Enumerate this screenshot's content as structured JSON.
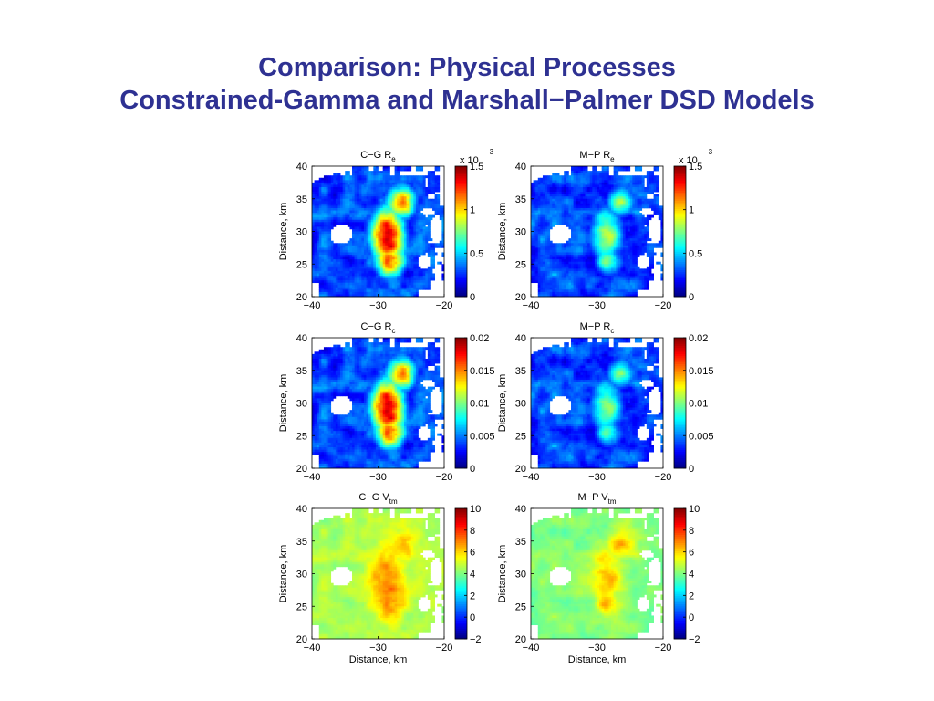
{
  "slide": {
    "title_line1": "Comparison: Physical Processes",
    "title_line2": "Constrained-Gamma and Marshall−Palmer DSD Models"
  },
  "colormap": "jet",
  "chart_data": [
    {
      "type": "heatmap",
      "title": "C−G R",
      "title_sub": "e",
      "field": "Re",
      "model": "C-G",
      "xlabel": "",
      "ylabel": "Distance, km",
      "xlim": [
        -40,
        -20
      ],
      "ylim": [
        20,
        40
      ],
      "xticks": [
        "−40",
        "−30",
        "−20"
      ],
      "yticks": [
        "20",
        "25",
        "30",
        "35",
        "40"
      ],
      "clim": [
        0,
        1.5
      ],
      "cbar_ticks": [
        "0",
        "0.5",
        "1",
        "1.5"
      ],
      "cbar_multiplier": "x 10",
      "cbar_exponent": "−3",
      "peak_value": 1.5
    },
    {
      "type": "heatmap",
      "title": "M−P R",
      "title_sub": "e",
      "field": "Re",
      "model": "M-P",
      "xlabel": "",
      "ylabel": "Distance, km",
      "xlim": [
        -40,
        -20
      ],
      "ylim": [
        20,
        40
      ],
      "xticks": [
        "−40",
        "−30",
        "−20"
      ],
      "yticks": [
        "20",
        "25",
        "30",
        "35",
        "40"
      ],
      "clim": [
        0,
        1.5
      ],
      "cbar_ticks": [
        "0",
        "0.5",
        "1",
        "1.5"
      ],
      "cbar_multiplier": "x 10",
      "cbar_exponent": "−3",
      "peak_value": 0.9
    },
    {
      "type": "heatmap",
      "title": "C−G R",
      "title_sub": "c",
      "field": "Rc",
      "model": "C-G",
      "xlabel": "",
      "ylabel": "Distance, km",
      "xlim": [
        -40,
        -20
      ],
      "ylim": [
        20,
        40
      ],
      "xticks": [
        "−40",
        "−30",
        "−20"
      ],
      "yticks": [
        "20",
        "25",
        "30",
        "35",
        "40"
      ],
      "clim": [
        0,
        0.02
      ],
      "cbar_ticks": [
        "0",
        "0.005",
        "0.01",
        "0.015",
        "0.02"
      ],
      "cbar_multiplier": "",
      "cbar_exponent": "",
      "peak_value": 0.02
    },
    {
      "type": "heatmap",
      "title": "M−P R",
      "title_sub": "c",
      "field": "Rc",
      "model": "M-P",
      "xlabel": "",
      "ylabel": "Distance, km",
      "xlim": [
        -40,
        -20
      ],
      "ylim": [
        20,
        40
      ],
      "xticks": [
        "−40",
        "−30",
        "−20"
      ],
      "yticks": [
        "20",
        "25",
        "30",
        "35",
        "40"
      ],
      "clim": [
        0,
        0.02
      ],
      "cbar_ticks": [
        "0",
        "0.005",
        "0.01",
        "0.015",
        "0.02"
      ],
      "cbar_multiplier": "",
      "cbar_exponent": "",
      "peak_value": 0.011
    },
    {
      "type": "heatmap",
      "title": "C−G V",
      "title_sub": "tm",
      "field": "Vtm",
      "model": "C-G",
      "xlabel": "Distance, km",
      "ylabel": "Distance, km",
      "xlim": [
        -40,
        -20
      ],
      "ylim": [
        20,
        40
      ],
      "xticks": [
        "−40",
        "−30",
        "−20"
      ],
      "yticks": [
        "20",
        "25",
        "30",
        "35",
        "40"
      ],
      "clim": [
        -2,
        10
      ],
      "cbar_ticks": [
        "−2",
        "0",
        "2",
        "4",
        "6",
        "8",
        "10"
      ],
      "cbar_multiplier": "",
      "cbar_exponent": "",
      "background_value": 4.5,
      "peak_value": 7.2
    },
    {
      "type": "heatmap",
      "title": "M−P V",
      "title_sub": "tm",
      "field": "Vtm",
      "model": "M-P",
      "xlabel": "Distance, km",
      "ylabel": "Distance, km",
      "xlim": [
        -40,
        -20
      ],
      "ylim": [
        20,
        40
      ],
      "xticks": [
        "−40",
        "−30",
        "−20"
      ],
      "yticks": [
        "20",
        "25",
        "30",
        "35",
        "40"
      ],
      "clim": [
        -2,
        10
      ],
      "cbar_ticks": [
        "−2",
        "0",
        "2",
        "4",
        "6",
        "8",
        "10"
      ],
      "cbar_multiplier": "",
      "cbar_exponent": "",
      "background_value": 4.0,
      "peak_value": 6.6
    }
  ]
}
